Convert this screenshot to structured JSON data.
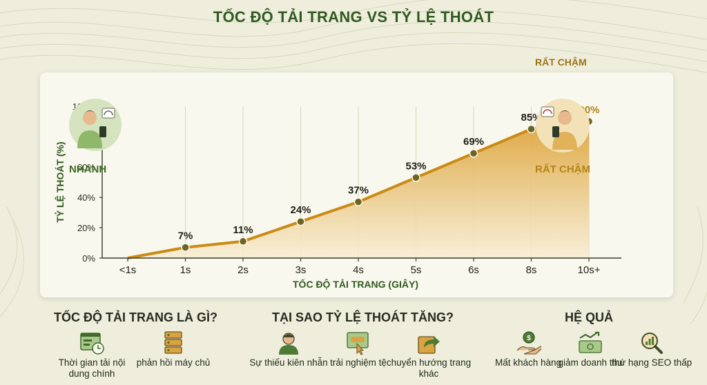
{
  "title": "TỐC ĐỘ TẢI TRANG VS TỶ LỆ THOÁT",
  "chart_data": {
    "type": "area",
    "title": "TỐC ĐỘ TẢI TRANG VS TỶ LỆ THOÁT",
    "xlabel": "TỐC ĐỘ TẢI TRANG (GIÂY)",
    "ylabel": "TỶ LỆ THOÁT (%)",
    "categories": [
      "<1s",
      "1s",
      "2s",
      "3s",
      "4s",
      "5s",
      "6s",
      "8s",
      "10s+"
    ],
    "values": [
      0,
      7,
      11,
      24,
      37,
      53,
      69,
      85,
      90
    ],
    "data_labels": [
      "",
      "7%",
      "11%",
      "24%",
      "37%",
      "53%",
      "69%",
      "85%",
      ">90%"
    ],
    "ylim": [
      0,
      100
    ],
    "yticks": [
      "0%",
      "20%",
      "40%",
      "60%",
      "80%",
      "100%"
    ],
    "grid": "vertical",
    "colors": {
      "line": "#c98b14",
      "point": "#6c6520",
      "fill_top": "#dda33a",
      "fill_bottom": "#f7edd2",
      "title": "#2f5a1f"
    }
  },
  "annotations": {
    "fast_label": "NHANH",
    "slow_label": "RẤT CHẬM",
    "slow_top_label": "RẤT CHẬM"
  },
  "sections": [
    {
      "title": "TỐC ĐỘ TẢI TRANG LÀ GÌ?",
      "items": [
        {
          "icon": "webpage-clock-icon",
          "text": "Thời gian tải nội dung chính"
        },
        {
          "icon": "server-icon",
          "text": "phản hồi máy chủ"
        }
      ]
    },
    {
      "title": "TẠI SAO TỶ LỆ THOÁT TĂNG?",
      "items": [
        {
          "icon": "user-icon",
          "text": "Sự thiếu kiên nhẫn"
        },
        {
          "icon": "cursor-click-icon",
          "text": "trải nghiệm tệ"
        },
        {
          "icon": "redirect-arrow-icon",
          "text": "chuyển hướng trang khác"
        }
      ]
    },
    {
      "title": "HỆ QUẢ",
      "items": [
        {
          "icon": "hand-coin-icon",
          "text": "Mất khách hàng"
        },
        {
          "icon": "money-down-icon",
          "text": "giảm doanh thu"
        },
        {
          "icon": "seo-magnifier-icon",
          "text": "thứ hạng SEO thấp"
        }
      ]
    }
  ]
}
